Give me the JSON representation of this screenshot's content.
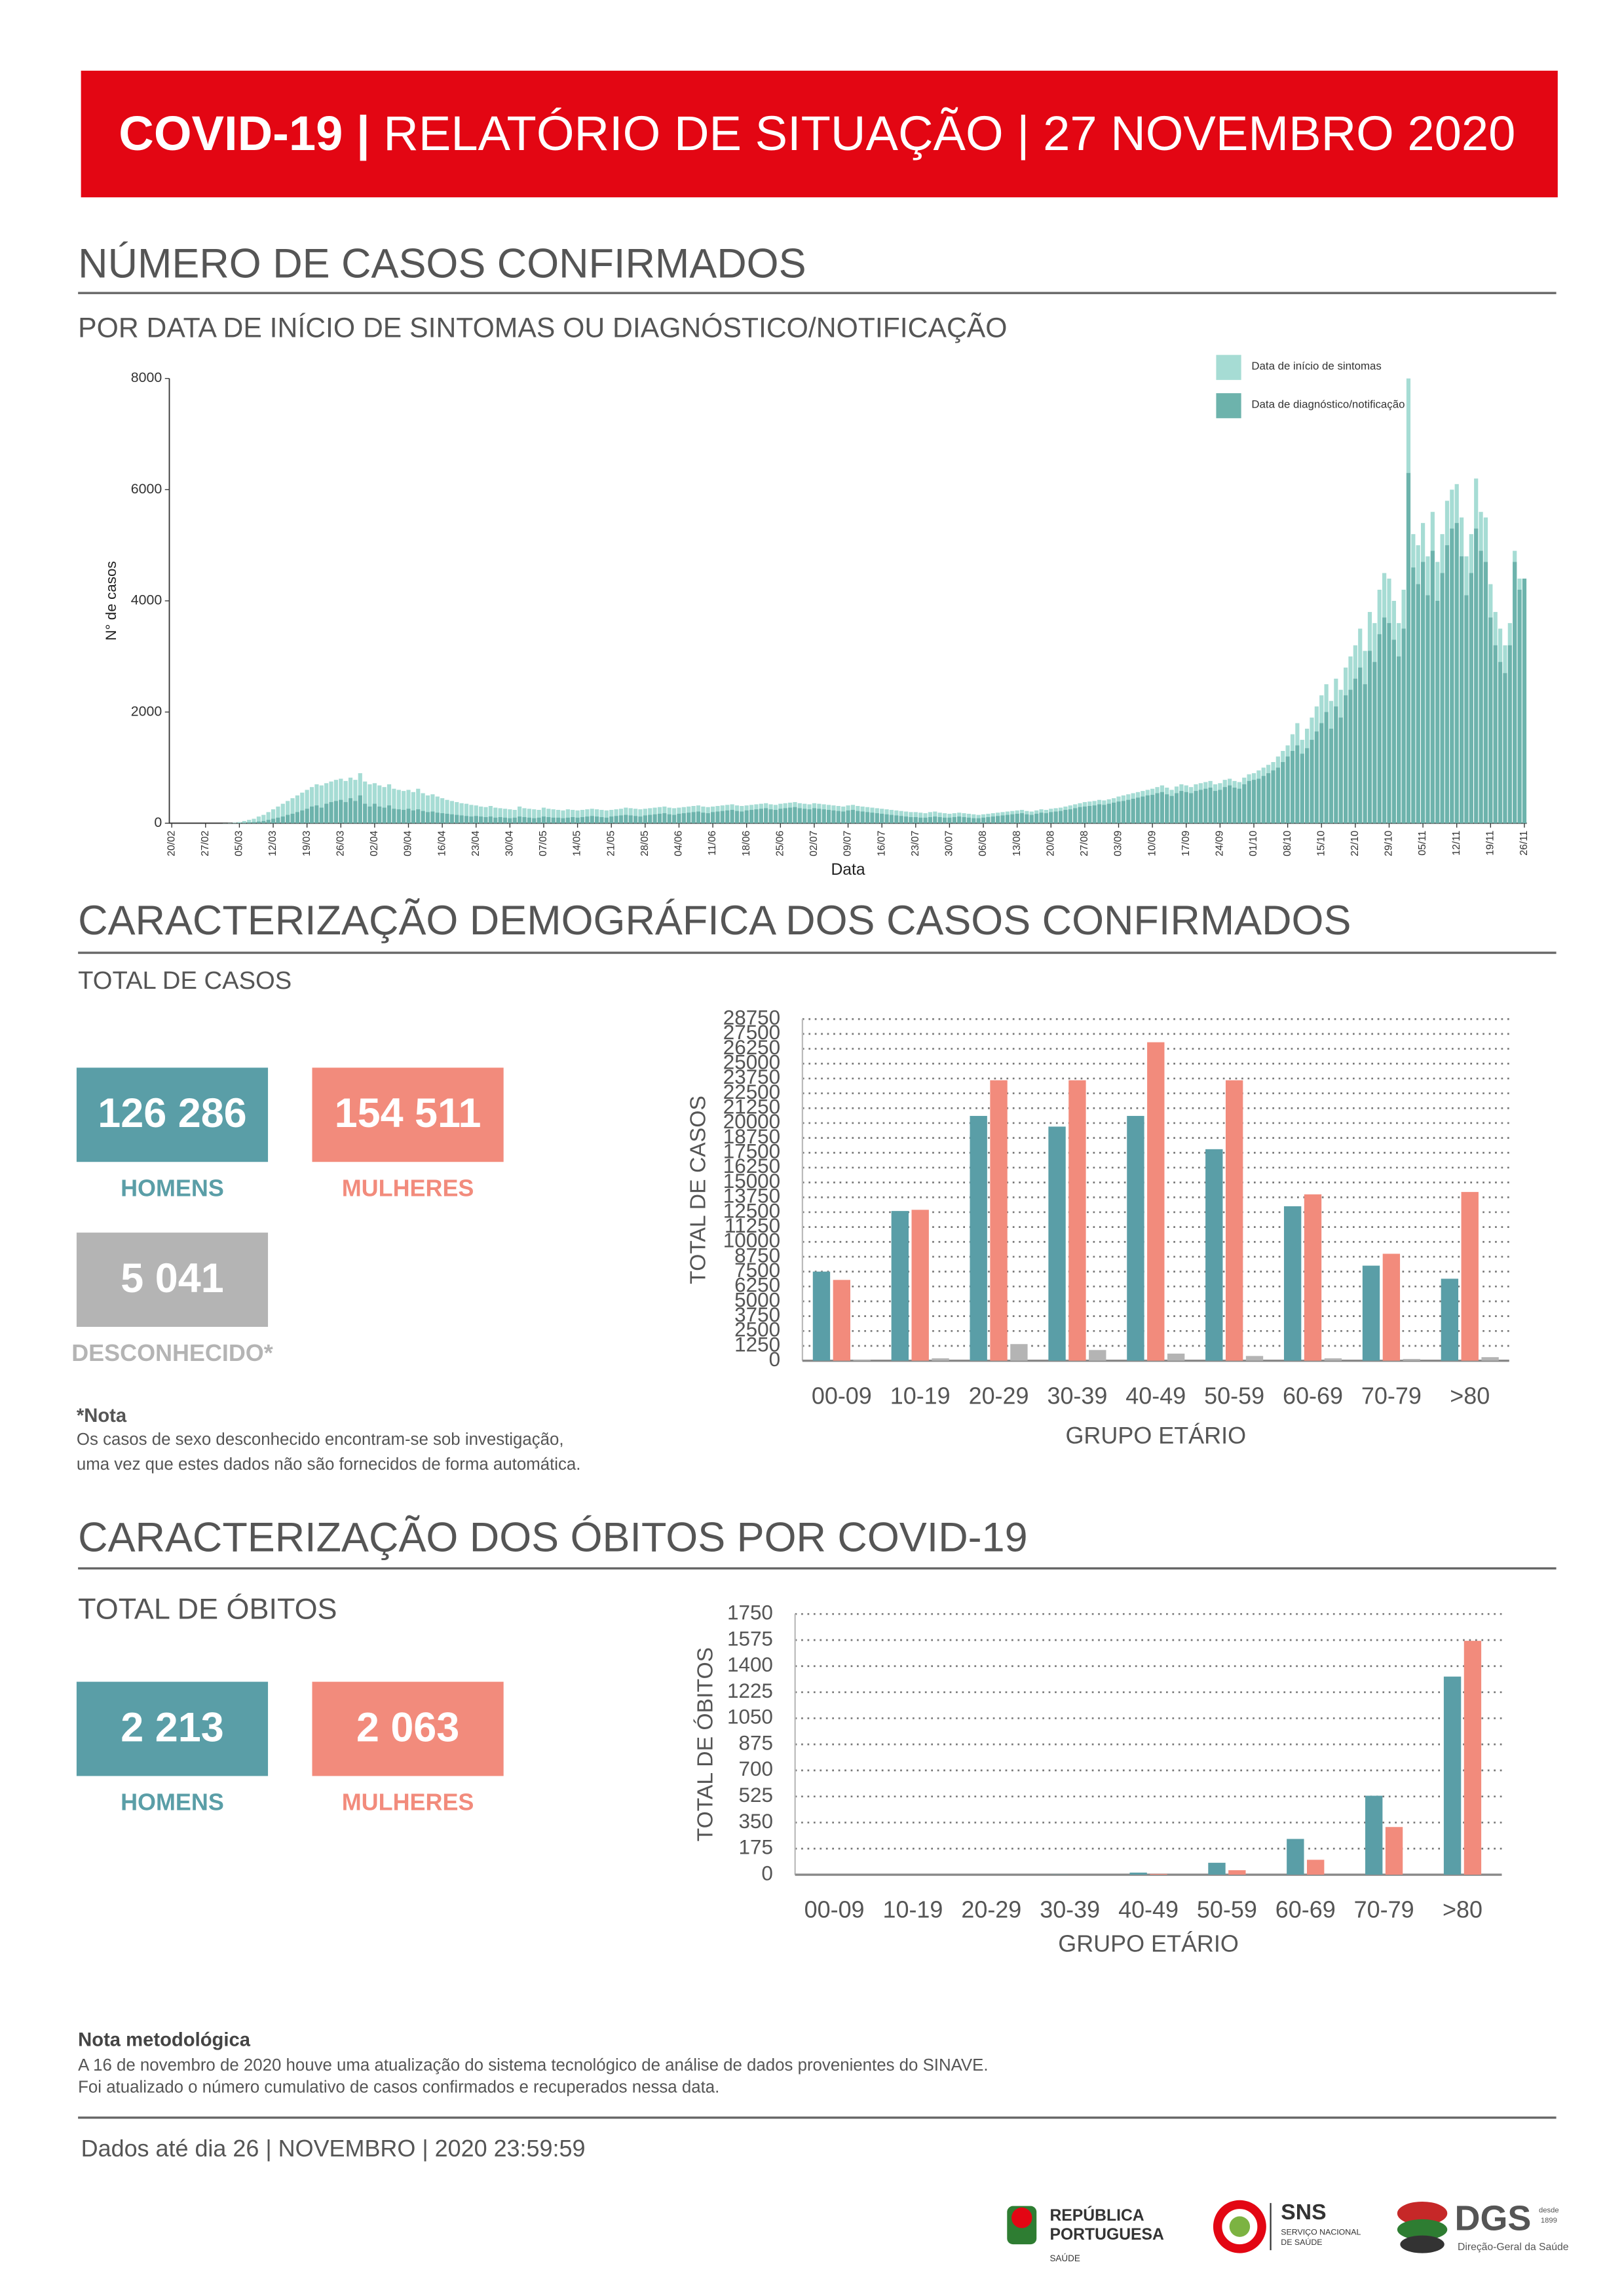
{
  "header": {
    "bold": "COVID-19 |",
    "rest": "RELATÓRIO DE SITUAÇÃO | 27 NOVEMBRO 2020"
  },
  "section1": {
    "title": "NÚMERO DE CASOS CONFIRMADOS",
    "subtitle": "POR DATA DE INÍCIO DE SINTOMAS OU DIAGNÓSTICO/NOTIFICAÇÃO"
  },
  "section2": {
    "title": "CARACTERIZAÇÃO DEMOGRÁFICA DOS CASOS CONFIRMADOS",
    "subtitle": "TOTAL DE CASOS",
    "cards": [
      {
        "value": "126 286",
        "label": "HOMENS",
        "color": "#5a9ea7"
      },
      {
        "value": "154 511",
        "label": "MULHERES",
        "color": "#f28b7c"
      },
      {
        "value": "5 041",
        "label": "DESCONHECIDO*",
        "color": "#b4b4b4"
      }
    ],
    "note_title": "*Nota",
    "note_lines": [
      "Os casos de sexo desconhecido encontram-se sob investigação,",
      "uma vez que estes dados não são fornecidos de forma automática."
    ]
  },
  "section3": {
    "title": "CARACTERIZAÇÃO DOS ÓBITOS POR COVID-19",
    "subtitle": "TOTAL DE ÓBITOS",
    "cards": [
      {
        "value": "2 213",
        "label": "HOMENS",
        "color": "#5a9ea7"
      },
      {
        "value": "2 063",
        "label": "MULHERES",
        "color": "#f28b7c"
      }
    ]
  },
  "footer": {
    "note_title": "Nota metodológica",
    "note_lines": [
      "A 16 de novembro de 2020 houve uma atualização do sistema tecnológico de análise de dados provenientes do SINAVE.",
      "Foi atualizado o número cumulativo de casos confirmados e recuperados nessa data."
    ],
    "data_line": "Dados até dia 26 | NOVEMBRO | 2020 23:59:59",
    "logos": [
      "REPÚBLICA",
      "PORTUGUESA",
      "SAÚDE",
      "SNS",
      "SERVIÇO NACIONAL",
      "DE SAÚDE",
      "DGS",
      "Direção-Geral da Saúde",
      "desde",
      "1899"
    ]
  },
  "chart_data": [
    {
      "type": "bar",
      "x_label": "Data",
      "y_label": "N° de casos",
      "legend": "top-right",
      "ylim": [
        0,
        8000
      ],
      "yticks": [
        0,
        2000,
        4000,
        6000,
        8000
      ],
      "categories": [
        "20/02",
        null,
        null,
        null,
        null,
        null,
        null,
        "27/02",
        null,
        null,
        null,
        null,
        null,
        null,
        "05/03",
        null,
        null,
        null,
        null,
        null,
        null,
        "12/03",
        null,
        null,
        null,
        null,
        null,
        null,
        "19/03",
        null,
        null,
        null,
        null,
        null,
        null,
        "26/03",
        null,
        null,
        null,
        null,
        null,
        null,
        "02/04",
        null,
        null,
        null,
        null,
        null,
        null,
        "09/04",
        null,
        null,
        null,
        null,
        null,
        null,
        "16/04",
        null,
        null,
        null,
        null,
        null,
        null,
        "23/04",
        null,
        null,
        null,
        null,
        null,
        null,
        "30/04",
        null,
        null,
        null,
        null,
        null,
        null,
        "07/05",
        null,
        null,
        null,
        null,
        null,
        null,
        "14/05",
        null,
        null,
        null,
        null,
        null,
        null,
        "21/05",
        null,
        null,
        null,
        null,
        null,
        null,
        "28/05",
        null,
        null,
        null,
        null,
        null,
        null,
        "04/06",
        null,
        null,
        null,
        null,
        null,
        null,
        "11/06",
        null,
        null,
        null,
        null,
        null,
        null,
        "18/06",
        null,
        null,
        null,
        null,
        null,
        null,
        "25/06",
        null,
        null,
        null,
        null,
        null,
        null,
        "02/07",
        null,
        null,
        null,
        null,
        null,
        null,
        "09/07",
        null,
        null,
        null,
        null,
        null,
        null,
        "16/07",
        null,
        null,
        null,
        null,
        null,
        null,
        "23/07",
        null,
        null,
        null,
        null,
        null,
        null,
        "30/07",
        null,
        null,
        null,
        null,
        null,
        null,
        "06/08",
        null,
        null,
        null,
        null,
        null,
        null,
        "13/08",
        null,
        null,
        null,
        null,
        null,
        null,
        "20/08",
        null,
        null,
        null,
        null,
        null,
        null,
        "27/08",
        null,
        null,
        null,
        null,
        null,
        null,
        "03/09",
        null,
        null,
        null,
        null,
        null,
        null,
        "10/09",
        null,
        null,
        null,
        null,
        null,
        null,
        "17/09",
        null,
        null,
        null,
        null,
        null,
        null,
        "24/09",
        null,
        null,
        null,
        null,
        null,
        null,
        "01/10",
        null,
        null,
        null,
        null,
        null,
        null,
        "08/10",
        null,
        null,
        null,
        null,
        null,
        null,
        "15/10",
        null,
        null,
        null,
        null,
        null,
        null,
        "22/10",
        null,
        null,
        null,
        null,
        null,
        null,
        "29/10",
        null,
        null,
        null,
        null,
        null,
        null,
        "05/11",
        null,
        null,
        null,
        null,
        null,
        null,
        "12/11",
        null,
        null,
        null,
        null,
        null,
        null,
        "19/11",
        null,
        null,
        null,
        null,
        null,
        null,
        "26/11"
      ],
      "series": [
        {
          "name": "Data de início de sintomas",
          "color": "#a6dcd4",
          "values": [
            0,
            0,
            0,
            0,
            0,
            0,
            0,
            0,
            0,
            0,
            0,
            2,
            5,
            10,
            20,
            40,
            60,
            80,
            120,
            150,
            200,
            250,
            300,
            350,
            400,
            450,
            500,
            550,
            600,
            650,
            700,
            680,
            720,
            750,
            780,
            800,
            760,
            820,
            780,
            900,
            750,
            700,
            720,
            680,
            650,
            700,
            620,
            600,
            580,
            600,
            560,
            620,
            540,
            500,
            520,
            480,
            450,
            420,
            400,
            380,
            360,
            350,
            330,
            320,
            300,
            290,
            310,
            280,
            270,
            260,
            250,
            240,
            300,
            270,
            260,
            250,
            240,
            280,
            260,
            250,
            240,
            230,
            250,
            240,
            230,
            240,
            250,
            260,
            250,
            240,
            230,
            240,
            250,
            260,
            280,
            270,
            260,
            250,
            260,
            270,
            280,
            290,
            300,
            280,
            270,
            280,
            290,
            300,
            310,
            320,
            300,
            290,
            300,
            310,
            320,
            330,
            340,
            320,
            310,
            320,
            330,
            340,
            350,
            360,
            340,
            330,
            350,
            360,
            370,
            380,
            360,
            350,
            340,
            360,
            350,
            340,
            330,
            320,
            310,
            300,
            320,
            330,
            310,
            300,
            290,
            280,
            270,
            260,
            250,
            240,
            230,
            220,
            210,
            200,
            200,
            190,
            180,
            200,
            210,
            190,
            180,
            170,
            180,
            190,
            180,
            170,
            160,
            150,
            160,
            170,
            180,
            190,
            200,
            210,
            220,
            230,
            240,
            220,
            210,
            230,
            250,
            240,
            260,
            270,
            280,
            300,
            320,
            340,
            360,
            380,
            390,
            400,
            420,
            410,
            430,
            450,
            480,
            500,
            520,
            540,
            560,
            580,
            600,
            620,
            650,
            680,
            640,
            600,
            660,
            700,
            680,
            650,
            700,
            720,
            740,
            760,
            700,
            720,
            780,
            800,
            760,
            740,
            820,
            880,
            900,
            950,
            1000,
            1050,
            1100,
            1200,
            1300,
            1400,
            1600,
            1800,
            1500,
            1700,
            1900,
            2100,
            2300,
            2500,
            2200,
            2600,
            2400,
            2800,
            3000,
            3200,
            3500,
            3100,
            3800,
            3600,
            4200,
            4500,
            4400,
            4000,
            3600,
            4200,
            8000,
            5200,
            5000,
            5400,
            4800,
            5600,
            4700,
            5200,
            5800,
            6000,
            6100,
            5500,
            4800,
            5200,
            6200,
            5600,
            5500,
            4300,
            3800,
            3500,
            3200,
            3600,
            4900,
            4400,
            4400
          ]
        },
        {
          "name": "Data de diagnóstico/notificação",
          "color": "#6db3ac",
          "values": [
            0,
            0,
            0,
            0,
            0,
            0,
            0,
            0,
            0,
            0,
            0,
            1,
            2,
            3,
            5,
            10,
            15,
            20,
            30,
            40,
            60,
            80,
            100,
            120,
            150,
            170,
            200,
            230,
            260,
            300,
            320,
            280,
            350,
            380,
            400,
            420,
            380,
            450,
            400,
            500,
            350,
            300,
            350,
            300,
            280,
            320,
            260,
            250,
            240,
            260,
            230,
            250,
            220,
            200,
            210,
            190,
            180,
            170,
            160,
            150,
            140,
            130,
            120,
            130,
            120,
            110,
            120,
            100,
            110,
            100,
            90,
            100,
            120,
            110,
            100,
            90,
            100,
            120,
            110,
            100,
            100,
            90,
            100,
            110,
            100,
            110,
            120,
            130,
            120,
            110,
            100,
            120,
            130,
            140,
            150,
            140,
            130,
            120,
            140,
            150,
            160,
            170,
            180,
            160,
            150,
            170,
            180,
            190,
            200,
            210,
            190,
            180,
            200,
            210,
            220,
            230,
            240,
            220,
            210,
            230,
            240,
            250,
            260,
            270,
            250,
            240,
            260,
            270,
            280,
            290,
            270,
            260,
            250,
            270,
            260,
            250,
            240,
            230,
            220,
            210,
            230,
            240,
            220,
            210,
            200,
            190,
            180,
            170,
            160,
            150,
            140,
            130,
            120,
            110,
            110,
            100,
            100,
            110,
            120,
            110,
            100,
            100,
            110,
            120,
            110,
            100,
            90,
            90,
            100,
            110,
            120,
            130,
            140,
            150,
            160,
            170,
            180,
            160,
            150,
            170,
            190,
            180,
            200,
            210,
            220,
            240,
            250,
            270,
            290,
            300,
            310,
            320,
            340,
            330,
            350,
            370,
            390,
            400,
            420,
            440,
            460,
            480,
            500,
            510,
            540,
            560,
            520,
            490,
            540,
            580,
            560,
            540,
            580,
            600,
            620,
            640,
            580,
            600,
            650,
            680,
            640,
            620,
            700,
            760,
            780,
            800,
            850,
            900,
            950,
            1000,
            1100,
            1200,
            1300,
            1400,
            1250,
            1350,
            1500,
            1650,
            1800,
            2000,
            1700,
            2100,
            1900,
            2300,
            2400,
            2600,
            2800,
            2500,
            3100,
            2900,
            3400,
            3700,
            3600,
            3300,
            3000,
            3500,
            6300,
            4600,
            4300,
            4700,
            4100,
            4900,
            4000,
            4500,
            5000,
            5300,
            5400,
            4800,
            4100,
            4500,
            5300,
            4900,
            4700,
            3700,
            3200,
            2900,
            2700,
            3200,
            4700,
            4200,
            4400
          ]
        }
      ]
    },
    {
      "type": "grouped_bar",
      "x_label": "GRUPO ETÁRIO",
      "y_label": "TOTAL DE CASOS",
      "grid": true,
      "ylim": [
        0,
        28750
      ],
      "yticks": [
        0,
        1250,
        2500,
        3750,
        5000,
        6250,
        7500,
        8750,
        10000,
        11250,
        12500,
        13750,
        15000,
        16250,
        17500,
        18750,
        20000,
        21250,
        22500,
        23750,
        25000,
        26250,
        27500,
        28750
      ],
      "categories": [
        "00-09",
        "10-19",
        "20-29",
        "30-39",
        "40-49",
        "50-59",
        "60-69",
        "70-79",
        ">80"
      ],
      "series": [
        {
          "name": "HOMENS",
          "color": "#5a9ea7",
          "values": [
            7500,
            12600,
            20600,
            19700,
            20600,
            17800,
            13000,
            8000,
            6900
          ]
        },
        {
          "name": "MULHERES",
          "color": "#f28b7c",
          "values": [
            6800,
            12700,
            23600,
            23600,
            26800,
            23600,
            14000,
            9000,
            14200
          ]
        },
        {
          "name": "DESCONHECIDO*",
          "color": "#b4b4b4",
          "values": [
            100,
            200,
            1400,
            900,
            600,
            400,
            200,
            150,
            300
          ]
        }
      ]
    },
    {
      "type": "grouped_bar",
      "x_label": "GRUPO ETÁRIO",
      "y_label": "TOTAL DE ÓBITOS",
      "grid": true,
      "ylim": [
        0,
        1750
      ],
      "yticks": [
        0,
        175,
        350,
        525,
        700,
        875,
        1050,
        1225,
        1400,
        1575,
        1750
      ],
      "categories": [
        "00-09",
        "10-19",
        "20-29",
        "30-39",
        "40-49",
        "50-59",
        "60-69",
        "70-79",
        ">80"
      ],
      "series": [
        {
          "name": "HOMENS",
          "color": "#5a9ea7",
          "values": [
            0,
            0,
            0,
            1,
            14,
            80,
            240,
            530,
            1330
          ]
        },
        {
          "name": "MULHERES",
          "color": "#f28b7c",
          "values": [
            0,
            0,
            0,
            0,
            5,
            30,
            100,
            320,
            1570
          ]
        }
      ]
    }
  ]
}
